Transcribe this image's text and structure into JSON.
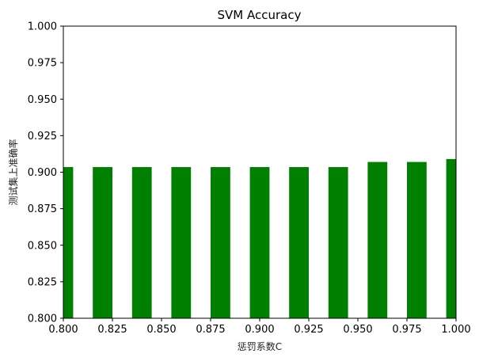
{
  "chart_data": {
    "type": "bar",
    "title": "SVM Accuracy",
    "xlabel": "惩罚系数C",
    "ylabel": "测试集上准确率",
    "xlim": [
      0.8,
      1.0
    ],
    "ylim": [
      0.8,
      1.0
    ],
    "x_ticks": [
      "0.800",
      "0.825",
      "0.850",
      "0.875",
      "0.900",
      "0.925",
      "0.950",
      "0.975",
      "1.000"
    ],
    "y_ticks": [
      "0.800",
      "0.825",
      "0.850",
      "0.875",
      "0.900",
      "0.925",
      "0.950",
      "0.975",
      "1.000"
    ],
    "bar_width": 0.01,
    "bar_color": "#008000",
    "grid": false,
    "legend": "none",
    "x": [
      0.8,
      0.82,
      0.84,
      0.86,
      0.88,
      0.9,
      0.92,
      0.94,
      0.96,
      0.98,
      1.0
    ],
    "values": [
      0.9035,
      0.9035,
      0.9035,
      0.9035,
      0.9035,
      0.9035,
      0.9035,
      0.9035,
      0.907,
      0.907,
      0.909
    ]
  }
}
